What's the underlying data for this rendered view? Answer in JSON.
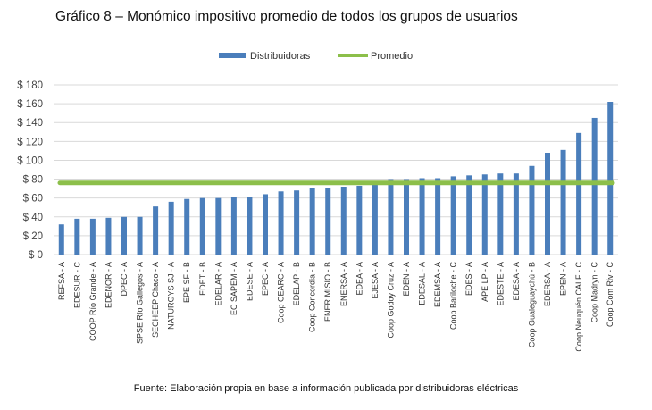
{
  "chart_data": {
    "type": "bar",
    "title": "Gráfico 8 – Monómico impositivo promedio de todos los grupos de usuarios",
    "source": "Fuente: Elaboración propia en base a información publicada por distribuidoras eléctricas",
    "xlabel": "",
    "ylabel": "",
    "ylim": [
      0,
      180
    ],
    "yticks": [
      0,
      20,
      40,
      60,
      80,
      100,
      120,
      140,
      160,
      180
    ],
    "ytick_labels": [
      "$ 0",
      "$ 20",
      "$ 40",
      "$ 60",
      "$ 80",
      "$ 100",
      "$ 120",
      "$ 140",
      "$ 160",
      "$ 180"
    ],
    "grid": true,
    "legend_position": "top-center",
    "categories": [
      "REFSA - A",
      "EDESUR - C",
      "COOP Río Grande - A",
      "EDENOR - A",
      "DPEC - A",
      "SPSE Río Gallegos - A",
      "SECHEEP Chaco - A",
      "NATURGYS SJ - A",
      "EPE SF - B",
      "EDET - B",
      "EDELAR - A",
      "EC SAPEM - A",
      "EDESE - A",
      "EPEC - A",
      "Coop CEARC - A",
      "EDELAP - B",
      "Coop Concordia - B",
      "ENER MISIO - B",
      "ENERSA - A",
      "EDEA - A",
      "EJESA - A",
      "Coop Godoy Cruz - A",
      "EDEN - A",
      "EDESAL - A",
      "EDEMSA - A",
      "Coop Bariloche - C",
      "EDES - A",
      "APE LP - A",
      "EDESTE - A",
      "EDESA - A",
      "Coop Gualeguaychú - B",
      "EDERSA - A",
      "EPEN - A",
      "Coop Neuquén CALF - C",
      "Coop Madryn - C",
      "Coop Com Riv - C"
    ],
    "series": [
      {
        "name": "Distribuidoras",
        "type": "bar",
        "color": "#4a7ebb",
        "values": [
          32,
          38,
          38,
          39,
          40,
          40,
          51,
          56,
          59,
          60,
          60,
          61,
          61,
          64,
          67,
          68,
          71,
          71,
          72,
          73,
          74,
          80,
          80,
          81,
          81,
          83,
          84,
          85,
          86,
          86,
          94,
          108,
          111,
          129,
          145,
          162
        ]
      },
      {
        "name": "Promedio",
        "type": "line",
        "color": "#8cbf4a",
        "value": 76
      }
    ]
  }
}
